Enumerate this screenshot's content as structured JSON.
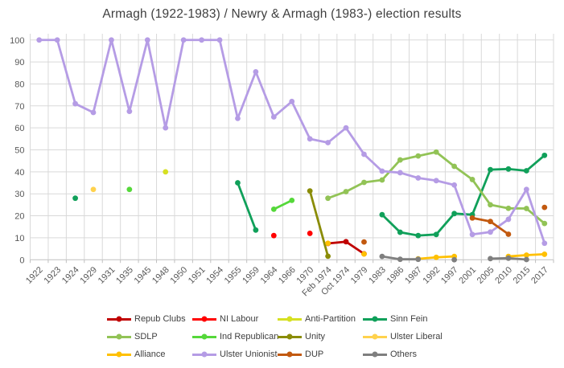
{
  "title": "Armagh (1922-1983) / Newry & Armagh (1983-) election results",
  "chart_data": {
    "type": "line",
    "title": "Armagh (1922-1983) / Newry & Armagh (1983-) election results",
    "xlabel": "",
    "ylabel": "",
    "ylim": [
      0,
      100
    ],
    "ytick_step": 10,
    "grid": true,
    "legend_position": "bottom",
    "axis_color": "#bfbfbf",
    "grid_color": "#d9d9d9",
    "label_color": "#595959",
    "categories": [
      "1922",
      "1923",
      "1924",
      "1929",
      "1931",
      "1935",
      "1945",
      "1948",
      "1950",
      "1951",
      "1954",
      "1955",
      "1959",
      "1964",
      "1966",
      "1970",
      "Feb 1974",
      "Oct 1974",
      "1979",
      "1983",
      "1986",
      "1987",
      "1992",
      "1997",
      "2001",
      "2005",
      "2010",
      "2015",
      "2017"
    ],
    "series": [
      {
        "name": "Repub Clubs",
        "color": "#c00000",
        "values": [
          null,
          null,
          null,
          null,
          null,
          null,
          null,
          null,
          null,
          null,
          null,
          null,
          null,
          null,
          null,
          null,
          7.4,
          8.2,
          2.7,
          null,
          null,
          null,
          null,
          null,
          null,
          null,
          null,
          null,
          null
        ]
      },
      {
        "name": "NI Labour",
        "color": "#ff0000",
        "values": [
          null,
          null,
          null,
          null,
          null,
          null,
          null,
          null,
          null,
          null,
          null,
          null,
          null,
          11,
          null,
          12,
          null,
          null,
          null,
          null,
          null,
          null,
          null,
          null,
          null,
          null,
          null,
          null,
          null
        ]
      },
      {
        "name": "Anti-Partition",
        "color": "#d6e022",
        "values": [
          null,
          null,
          null,
          null,
          null,
          null,
          null,
          40,
          null,
          null,
          null,
          null,
          null,
          null,
          null,
          null,
          null,
          null,
          null,
          null,
          null,
          null,
          null,
          null,
          null,
          null,
          null,
          null,
          null
        ]
      },
      {
        "name": "Sinn Fein",
        "color": "#10a05a",
        "values": [
          null,
          null,
          28,
          null,
          null,
          null,
          null,
          null,
          null,
          null,
          null,
          35,
          13.5,
          null,
          null,
          null,
          null,
          null,
          null,
          20.5,
          12.5,
          11,
          11.5,
          21,
          20.5,
          41,
          41.3,
          40.5,
          47.5
        ]
      },
      {
        "name": "SDLP",
        "color": "#92c356",
        "values": [
          null,
          null,
          null,
          null,
          null,
          null,
          null,
          null,
          null,
          null,
          null,
          null,
          null,
          null,
          null,
          null,
          28,
          31,
          35.2,
          36.3,
          45.4,
          47.2,
          49,
          42.5,
          36.5,
          25,
          23.4,
          23.3,
          16.5
        ]
      },
      {
        "name": "Ind Republican",
        "color": "#55d83a",
        "values": [
          null,
          null,
          null,
          null,
          null,
          32,
          null,
          null,
          null,
          null,
          null,
          null,
          null,
          23,
          27,
          null,
          null,
          null,
          null,
          null,
          null,
          null,
          null,
          null,
          null,
          null,
          null,
          null,
          null
        ]
      },
      {
        "name": "Unity",
        "color": "#8a8c07",
        "values": [
          null,
          null,
          null,
          null,
          null,
          null,
          null,
          null,
          null,
          null,
          null,
          null,
          null,
          null,
          null,
          31.3,
          1.6,
          null,
          null,
          null,
          null,
          null,
          null,
          null,
          null,
          null,
          null,
          null,
          null
        ]
      },
      {
        "name": "Ulster Liberal",
        "color": "#ffd24d",
        "values": [
          null,
          null,
          null,
          32,
          null,
          null,
          null,
          null,
          null,
          null,
          null,
          null,
          null,
          null,
          null,
          null,
          null,
          null,
          null,
          null,
          null,
          null,
          null,
          null,
          null,
          null,
          null,
          null,
          null
        ]
      },
      {
        "name": "Alliance",
        "color": "#ffc000",
        "values": [
          null,
          null,
          null,
          null,
          null,
          null,
          null,
          null,
          null,
          null,
          null,
          null,
          null,
          null,
          null,
          null,
          7.5,
          null,
          2.6,
          null,
          null,
          0.4,
          1.1,
          1.5,
          null,
          null,
          1.5,
          2.1,
          2.5
        ]
      },
      {
        "name": "Ulster Unionist",
        "color": "#b59ce5",
        "values": [
          100,
          100,
          71,
          67,
          100,
          67.5,
          100,
          60,
          100,
          100,
          100,
          64.3,
          85.5,
          65,
          72,
          55,
          53.3,
          60,
          48,
          40.3,
          39.6,
          37.2,
          36,
          34,
          11.5,
          12.6,
          18.4,
          32,
          7.5
        ]
      },
      {
        "name": "DUP",
        "color": "#c2590f",
        "values": [
          null,
          null,
          null,
          null,
          null,
          null,
          null,
          null,
          null,
          null,
          null,
          null,
          null,
          null,
          null,
          null,
          null,
          null,
          8.1,
          null,
          null,
          null,
          null,
          null,
          19,
          17.4,
          11.6,
          null,
          23.8
        ]
      },
      {
        "name": "Others",
        "color": "#7f7f7f",
        "values": [
          null,
          null,
          null,
          null,
          null,
          null,
          null,
          null,
          null,
          null,
          null,
          null,
          null,
          null,
          null,
          null,
          null,
          null,
          null,
          1.5,
          0.2,
          0.2,
          null,
          0,
          null,
          0.5,
          0.7,
          0.1,
          null
        ]
      }
    ]
  }
}
